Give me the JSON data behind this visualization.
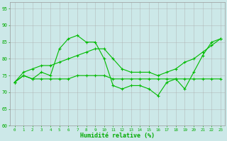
{
  "line1": {
    "x": [
      0,
      1,
      2,
      3,
      4,
      5,
      6,
      7,
      8,
      9,
      10,
      11,
      12,
      13,
      14,
      15,
      16,
      17,
      18,
      19,
      20,
      21,
      22,
      23
    ],
    "y": [
      73,
      75,
      74,
      76,
      75,
      83,
      86,
      87,
      85,
      85,
      80,
      72,
      71,
      72,
      72,
      71,
      69,
      73,
      74,
      71,
      76,
      81,
      85,
      86
    ]
  },
  "line2": {
    "x": [
      0,
      1,
      2,
      3,
      4,
      5,
      6,
      7,
      8,
      9,
      10,
      11,
      12,
      13,
      14,
      15,
      16,
      17,
      18,
      19,
      20,
      21,
      22,
      23
    ],
    "y": [
      73,
      76,
      77,
      78,
      78,
      79,
      80,
      81,
      82,
      83,
      83,
      80,
      77,
      76,
      76,
      76,
      75,
      76,
      77,
      79,
      80,
      82,
      84,
      86
    ]
  },
  "line3": {
    "x": [
      0,
      1,
      2,
      3,
      4,
      5,
      6,
      7,
      8,
      9,
      10,
      11,
      12,
      13,
      14,
      15,
      16,
      17,
      18,
      19,
      20,
      21,
      22,
      23
    ],
    "y": [
      73,
      75,
      74,
      74,
      74,
      74,
      74,
      75,
      75,
      75,
      75,
      74,
      74,
      74,
      74,
      74,
      74,
      74,
      74,
      74,
      74,
      74,
      74,
      74
    ]
  },
  "xlabel": "Humidité relative (%)",
  "xlim": [
    -0.5,
    23.5
  ],
  "ylim": [
    60,
    97
  ],
  "yticks": [
    60,
    65,
    70,
    75,
    80,
    85,
    90,
    95
  ],
  "xticks": [
    0,
    1,
    2,
    3,
    4,
    5,
    6,
    7,
    8,
    9,
    10,
    11,
    12,
    13,
    14,
    15,
    16,
    17,
    18,
    19,
    20,
    21,
    22,
    23
  ],
  "bg_color": "#cce8e8",
  "grid_color": "#aaaaaa",
  "line_color": "#00bb00",
  "label_color": "#00aa00"
}
